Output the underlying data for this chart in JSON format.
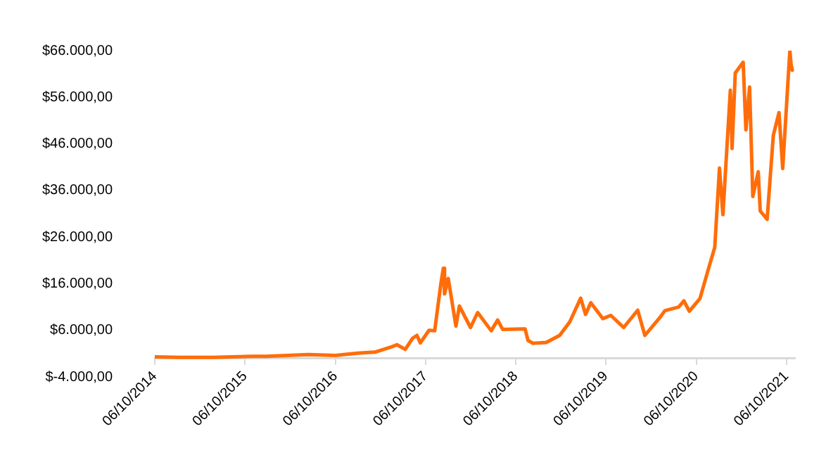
{
  "chart_data": {
    "type": "line",
    "x": [
      "2014-10-06",
      "2015-01-14",
      "2015-06-01",
      "2015-11-04",
      "2016-01-01",
      "2016-06-18",
      "2016-10-06",
      "2017-01-04",
      "2017-03-15",
      "2017-05-25",
      "2017-06-12",
      "2017-07-16",
      "2017-08-15",
      "2017-09-01",
      "2017-09-15",
      "2017-10-20",
      "2017-11-12",
      "2017-12-07",
      "2017-12-17",
      "2017-12-22",
      "2018-01-06",
      "2018-02-06",
      "2018-02-20",
      "2018-04-06",
      "2018-05-05",
      "2018-06-29",
      "2018-07-25",
      "2018-08-14",
      "2018-11-13",
      "2018-11-25",
      "2018-12-15",
      "2019-02-07",
      "2019-04-02",
      "2019-05-13",
      "2019-06-26",
      "2019-07-16",
      "2019-08-06",
      "2019-09-24",
      "2019-10-26",
      "2019-12-17",
      "2020-02-12",
      "2020-03-12",
      "2020-05-10",
      "2020-06-01",
      "2020-07-27",
      "2020-08-17",
      "2020-09-08",
      "2020-10-21",
      "2020-11-24",
      "2020-12-20",
      "2021-01-08",
      "2021-01-22",
      "2021-02-21",
      "2021-02-28",
      "2021-03-13",
      "2021-04-14",
      "2021-04-25",
      "2021-05-10",
      "2021-05-23",
      "2021-06-14",
      "2021-06-22",
      "2021-07-20",
      "2021-08-14",
      "2021-09-06",
      "2021-09-21",
      "2021-10-20",
      "2021-10-25",
      "2021-10-30"
    ],
    "series": [
      {
        "color": "#ff6d0a",
        "values": [
          300,
          200,
          200,
          400,
          400,
          800,
          600,
          1100,
          1300,
          2500,
          2900,
          1900,
          4300,
          4900,
          3300,
          6000,
          5900,
          16000,
          19300,
          13800,
          17100,
          6900,
          11200,
          6600,
          9800,
          5900,
          8200,
          6200,
          6300,
          3800,
          3200,
          3400,
          4900,
          7800,
          12900,
          9400,
          11900,
          8500,
          9200,
          6600,
          10300,
          4900,
          8600,
          10200,
          11000,
          12300,
          10100,
          12800,
          19100,
          23800,
          40800,
          30800,
          57500,
          45000,
          61200,
          63500,
          49000,
          58200,
          34700,
          40000,
          31600,
          29800,
          47800,
          52700,
          40700,
          66000,
          63000,
          61800
        ]
      }
    ],
    "xlim": [
      "2014-10-06",
      "2021-11-10"
    ],
    "xticks": [
      {
        "value": "2014-10-06",
        "label": "06/10/2014"
      },
      {
        "value": "2015-10-06",
        "label": "06/10/2015"
      },
      {
        "value": "2016-10-06",
        "label": "06/10/2016"
      },
      {
        "value": "2017-10-06",
        "label": "06/10/2017"
      },
      {
        "value": "2018-10-06",
        "label": "06/10/2018"
      },
      {
        "value": "2019-10-06",
        "label": "06/10/2019"
      },
      {
        "value": "2020-10-06",
        "label": "06/10/2020"
      },
      {
        "value": "2021-10-06",
        "label": "06/10/2021"
      }
    ],
    "ylim": [
      -4000,
      66000
    ],
    "yticks": [
      {
        "value": -4000,
        "label": "$-4.000,00"
      },
      {
        "value": 6000,
        "label": "$6.000,00"
      },
      {
        "value": 16000,
        "label": "$16.000,00"
      },
      {
        "value": 26000,
        "label": "$26.000,00"
      },
      {
        "value": 36000,
        "label": "$36.000,00"
      },
      {
        "value": 46000,
        "label": "$46.000,00"
      },
      {
        "value": 56000,
        "label": "$56.000,00"
      },
      {
        "value": 66000,
        "label": "$66.000,00"
      }
    ],
    "grid": false,
    "legend": false,
    "marker": "none",
    "line_style": "solid"
  }
}
